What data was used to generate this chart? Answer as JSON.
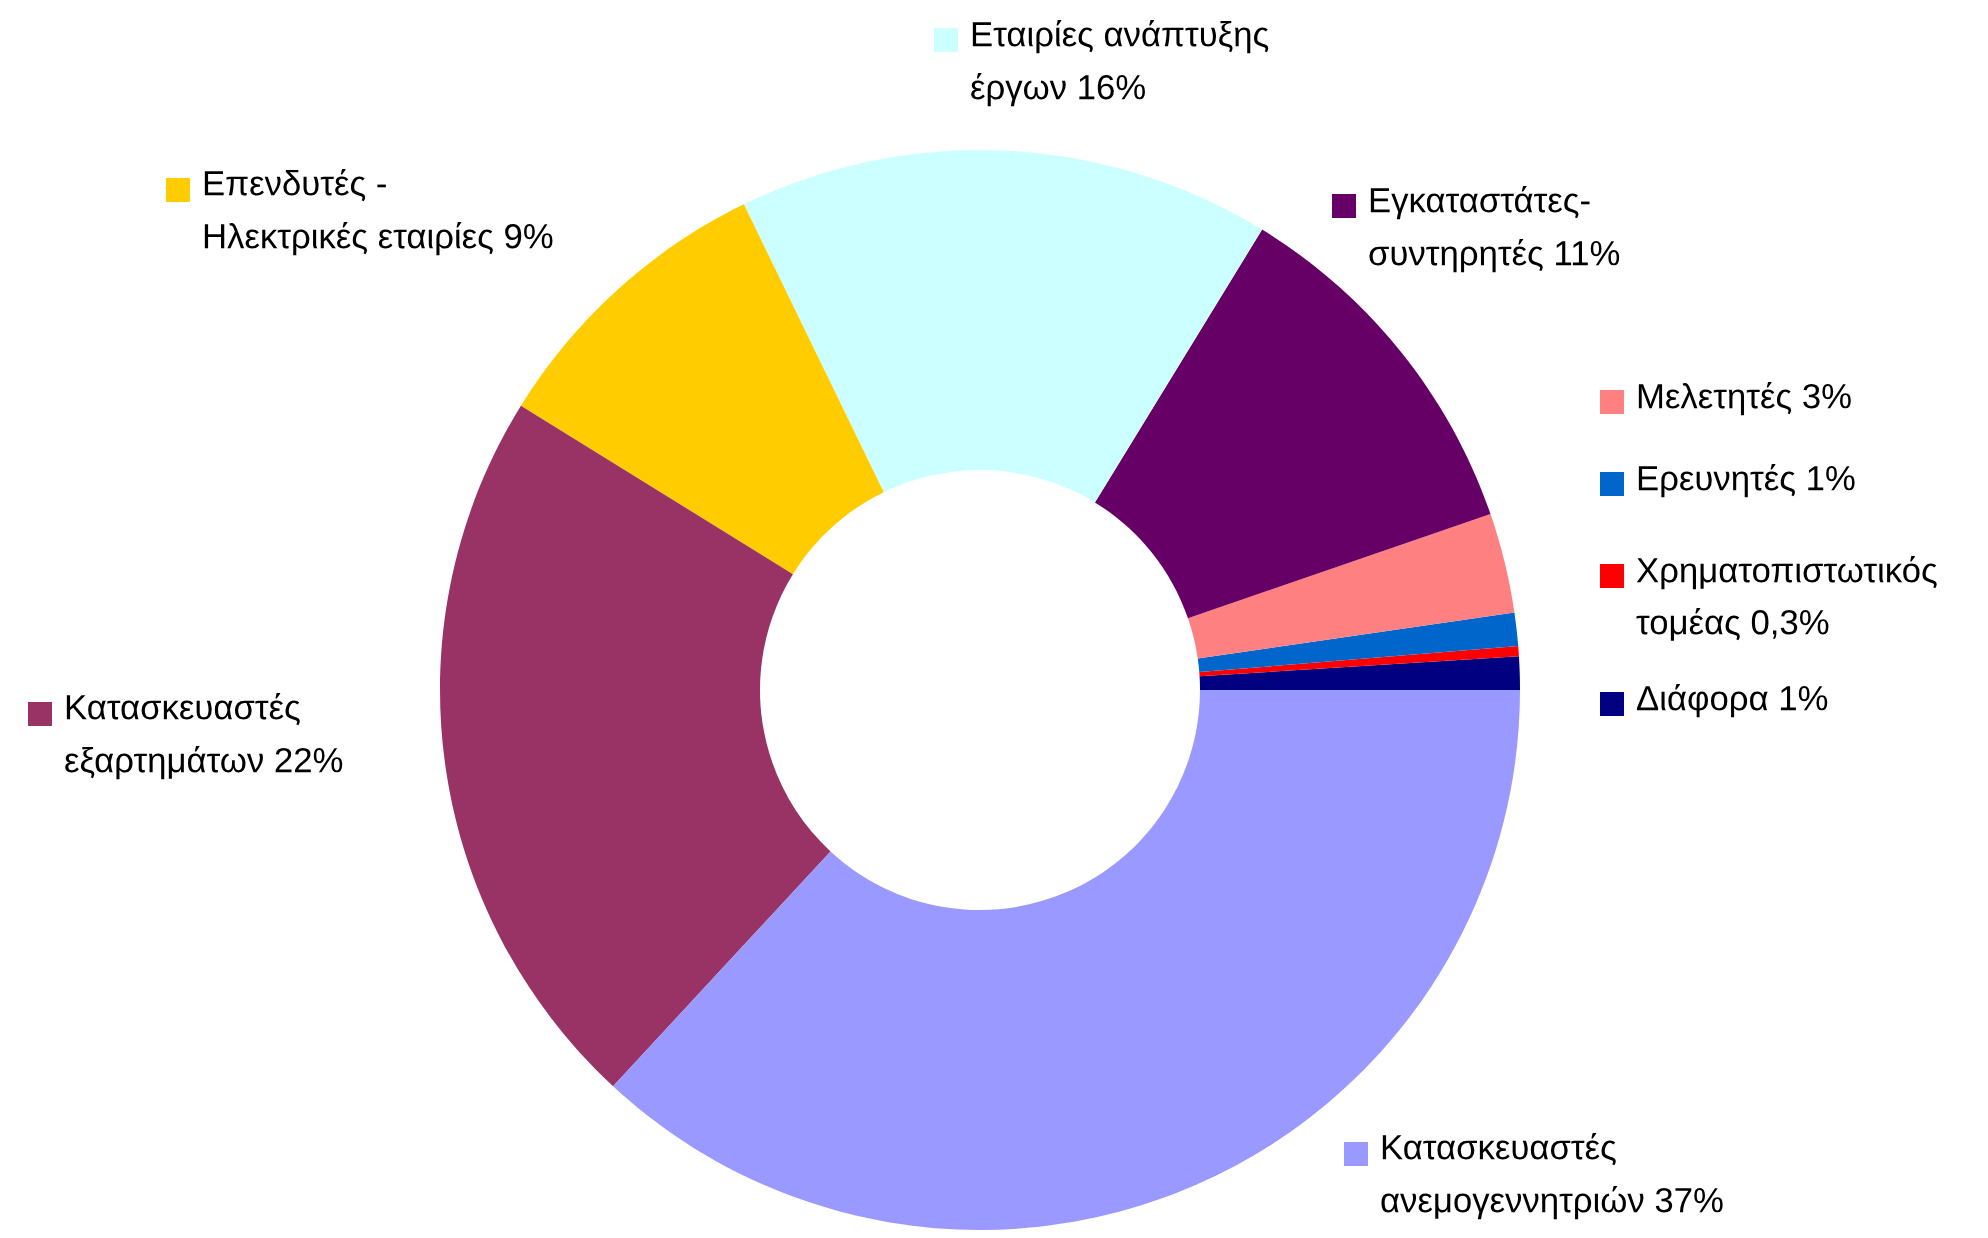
{
  "chart_data": {
    "type": "donut",
    "categories": [
      "Διάφορα 1%",
      "Χρηματοπιστωτικός\nτομέας 0,3%",
      "Ερευνητές 1%",
      "Μελετητές 3%",
      "Εγκαταστάτες-\nσυντηρητές 11%",
      "Εταιρίες ανάπτυξης\nέργων 16%",
      "Επενδυτές -\nΗλεκτρικές εταιρίες 9%",
      "Κατασκευαστές\nεξαρτημάτων 22%",
      "Κατασκευαστές\nανεμογεννητριών 37%"
    ],
    "values": [
      1,
      0.3,
      1,
      3,
      11,
      16,
      9,
      22,
      37
    ],
    "legend": "right",
    "colors": [
      "#000080",
      "#ff0000",
      "#0066cc",
      "#ff8080",
      "#660066",
      "#ccffff",
      "#ffcc00",
      "#993366",
      "#9999ff"
    ]
  }
}
